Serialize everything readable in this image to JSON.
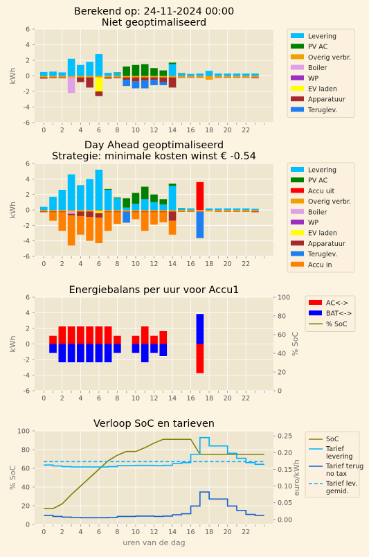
{
  "colors": {
    "background": "#fdf3e1",
    "plot_bg": "#efe6d0",
    "grid": "#ffffff",
    "levering": "#00bfff",
    "pv_ac": "#008000",
    "accu_uit": "#ff0000",
    "overig": "#f0a000",
    "boiler": "#e0a0e8",
    "wp": "#9b30c0",
    "ev": "#ffff00",
    "apparatuur": "#a52a2a",
    "teruglev": "#1e7ff0",
    "accu_in": "#ff8000",
    "ac": "#ff0000",
    "bat": "#0000ff",
    "soc": "#808000",
    "tarief": "#00b0ff",
    "tarief_terug": "#1060d0",
    "tick_text": "#555555",
    "label_text": "#777777"
  },
  "xlabel": "uren van de dag",
  "chart_data": [
    {
      "type": "bar",
      "title": [
        "Berekend op: 24-11-2024 00:00",
        "Niet geoptimaliseerd"
      ],
      "ylabel": "kWh",
      "ylim": [
        -6,
        6
      ],
      "yticks": [
        -6,
        -4,
        -2,
        0,
        2,
        4,
        6
      ],
      "xticks": [
        0,
        2,
        4,
        6,
        8,
        10,
        12,
        14,
        16,
        18,
        20,
        22
      ],
      "x": [
        0,
        1,
        2,
        3,
        4,
        5,
        6,
        7,
        8,
        9,
        10,
        11,
        12,
        13,
        14,
        15,
        16,
        17,
        18,
        19,
        20,
        21,
        22,
        23
      ],
      "legend": [
        "Levering",
        "PV AC",
        "Overig verbr.",
        "Boiler",
        "WP",
        "EV laden",
        "Apparatuur",
        "Teruglev."
      ],
      "positive_series": [
        {
          "name": "Levering",
          "values": [
            0.5,
            0.55,
            0.45,
            2.2,
            1.4,
            1.8,
            2.8,
            0.4,
            0.4,
            0,
            0,
            0,
            0,
            0,
            1.5,
            0.3,
            0.25,
            0.3,
            0.65,
            0.3,
            0.3,
            0.3,
            0.3,
            0.3
          ]
        },
        {
          "name": "PV AC",
          "values": [
            0,
            0,
            0,
            0,
            0,
            0,
            0,
            0,
            0.05,
            1.2,
            1.4,
            1.5,
            1.0,
            0.7,
            0.2,
            0.05,
            0,
            0,
            0,
            0,
            0,
            0,
            0,
            0
          ]
        }
      ],
      "negative_series": [
        {
          "name": "Overig verbr.",
          "values": [
            -0.2,
            -0.2,
            -0.2,
            -0.2,
            -0.2,
            -0.2,
            -0.2,
            -0.2,
            -0.2,
            -0.2,
            -0.2,
            -0.2,
            -0.2,
            -0.2,
            -0.2,
            -0.2,
            -0.2,
            -0.2,
            -0.5,
            -0.2,
            -0.2,
            -0.2,
            -0.2,
            -0.2
          ]
        },
        {
          "name": "Boiler",
          "values": [
            0,
            0,
            0,
            -2.0,
            0,
            0,
            0,
            0,
            0,
            0,
            0,
            0,
            0,
            0,
            0,
            0,
            0,
            0,
            0,
            0,
            0,
            0,
            0,
            0
          ]
        },
        {
          "name": "EV laden",
          "values": [
            0,
            0,
            0,
            0,
            0,
            0,
            -1.8,
            0,
            0,
            0,
            0,
            0,
            0,
            0,
            0,
            0,
            0,
            0,
            0,
            0,
            0,
            0,
            0,
            0
          ]
        },
        {
          "name": "Apparatuur",
          "values": [
            -0.15,
            -0.1,
            -0.1,
            0,
            -0.6,
            -1.3,
            -0.6,
            -0.15,
            -0.1,
            -0.3,
            -0.5,
            -0.4,
            -0.3,
            -0.6,
            -1.3,
            -0.05,
            -0.05,
            -0.05,
            0,
            -0.05,
            -0.05,
            -0.05,
            -0.05,
            -0.1
          ]
        },
        {
          "name": "Teruglev.",
          "values": [
            0,
            0,
            0,
            0,
            0,
            0,
            0,
            0,
            0,
            -0.8,
            -0.9,
            -1.0,
            -0.7,
            -0.4,
            0,
            0,
            0,
            0,
            0,
            0,
            0,
            0,
            0,
            0
          ]
        }
      ]
    },
    {
      "type": "bar",
      "title": [
        "Day Ahead geoptimaliseerd",
        "Strategie: minimale kosten winst € -0.54"
      ],
      "ylabel": "kWh",
      "ylim": [
        -6,
        6
      ],
      "yticks": [
        -6,
        -4,
        -2,
        0,
        2,
        4,
        6
      ],
      "xticks": [
        0,
        2,
        4,
        6,
        8,
        10,
        12,
        14,
        16,
        18,
        20,
        22
      ],
      "x": [
        0,
        1,
        2,
        3,
        4,
        5,
        6,
        7,
        8,
        9,
        10,
        11,
        12,
        13,
        14,
        15,
        16,
        17,
        18,
        19,
        20,
        21,
        22,
        23
      ],
      "legend": [
        "Levering",
        "PV AC",
        "Accu uit",
        "Overig verbr.",
        "Boiler",
        "WP",
        "EV laden",
        "Apparatuur",
        "Teruglev.",
        "Accu in"
      ],
      "positive_series": [
        {
          "name": "Levering",
          "values": [
            0.4,
            1.7,
            2.6,
            4.6,
            3.2,
            4.0,
            5.2,
            2.6,
            1.5,
            0.3,
            0.8,
            1.4,
            1.0,
            0.7,
            3.1,
            0.2,
            0.2,
            0,
            0.2,
            0.2,
            0.2,
            0.2,
            0.2,
            0.15
          ]
        },
        {
          "name": "PV AC",
          "values": [
            0,
            0,
            0,
            0,
            0,
            0,
            0,
            0.1,
            0.1,
            1.2,
            1.4,
            1.6,
            1.0,
            0.7,
            0.3,
            0.05,
            0,
            0,
            0,
            0,
            0,
            0,
            0,
            0
          ]
        },
        {
          "name": "Accu uit",
          "values": [
            0,
            0,
            0,
            0,
            0,
            0,
            0,
            0,
            0,
            0,
            0,
            0,
            0,
            0,
            0,
            0,
            0,
            3.6,
            0,
            0,
            0,
            0,
            0,
            0
          ]
        }
      ],
      "negative_series": [
        {
          "name": "Overig verbr.",
          "values": [
            -0.2,
            -0.2,
            -0.2,
            -0.2,
            -0.2,
            -0.2,
            -0.2,
            -0.2,
            -0.2,
            -0.2,
            -0.2,
            -0.2,
            -0.2,
            -0.2,
            -0.2,
            -0.2,
            -0.2,
            -0.2,
            -0.2,
            -0.2,
            -0.2,
            -0.2,
            -0.2,
            -0.2
          ]
        },
        {
          "name": "Boiler",
          "values": [
            0,
            0,
            0,
            -0.3,
            0,
            0,
            0,
            0,
            0,
            0,
            0,
            0,
            0,
            0,
            0,
            0,
            0,
            0,
            0,
            0,
            0,
            0,
            0,
            0
          ]
        },
        {
          "name": "EV laden",
          "values": [
            0,
            0,
            0,
            0,
            0,
            0,
            -0.2,
            0,
            0,
            0,
            0,
            0,
            0,
            0,
            0,
            0,
            0,
            0,
            0,
            0,
            0,
            0,
            0,
            0
          ]
        },
        {
          "name": "Apparatuur",
          "values": [
            -0.1,
            -0.1,
            -0.1,
            -0.2,
            -0.6,
            -0.7,
            -0.6,
            -0.1,
            -0.1,
            -0.05,
            -0.1,
            -0.1,
            -0.1,
            -0.1,
            -1.2,
            -0.05,
            -0.05,
            -0.05,
            0,
            -0.05,
            -0.05,
            -0.05,
            -0.05,
            -0.1
          ]
        },
        {
          "name": "Teruglev.",
          "values": [
            0,
            0,
            0,
            0,
            0,
            0,
            0,
            0,
            0,
            -1.4,
            0,
            0,
            0,
            0,
            0,
            0,
            0,
            -3.4,
            0,
            0,
            0,
            0,
            0,
            0
          ]
        },
        {
          "name": "Accu in",
          "values": [
            0,
            -1.1,
            -2.4,
            -3.9,
            -2.4,
            -3.1,
            -3.3,
            -2.4,
            -1.5,
            0,
            -0.9,
            -2.4,
            -1.6,
            -1.3,
            -1.8,
            0,
            0,
            0,
            0,
            0,
            0,
            0,
            0,
            0
          ]
        }
      ]
    },
    {
      "type": "bar",
      "title": [
        "Energiebalans per uur voor Accu1"
      ],
      "ylabel": "kWh",
      "ylabel2": "% SoC",
      "ylim": [
        -6,
        6
      ],
      "yticks": [
        -6,
        -4,
        -2,
        0,
        2,
        4,
        6
      ],
      "y2lim": [
        0,
        100
      ],
      "y2ticks": [
        0,
        20,
        40,
        60,
        80,
        100
      ],
      "xticks": [
        0,
        2,
        4,
        6,
        8,
        10,
        12,
        14,
        16,
        18,
        20,
        22
      ],
      "x": [
        0,
        1,
        2,
        3,
        4,
        5,
        6,
        7,
        8,
        9,
        10,
        11,
        12,
        13,
        14,
        15,
        16,
        17,
        18,
        19,
        20,
        21,
        22,
        23
      ],
      "legend": [
        "AC<->",
        "BAT<->",
        "% SoC"
      ],
      "ac_values": [
        0,
        1.1,
        2.3,
        2.3,
        2.3,
        2.3,
        2.3,
        2.3,
        1.1,
        0,
        1.1,
        2.3,
        1.1,
        1.7,
        0,
        0,
        0,
        -3.8,
        0,
        0,
        0,
        0,
        0,
        0
      ],
      "bat_values": [
        0,
        -1.2,
        -2.4,
        -2.4,
        -2.4,
        -2.4,
        -2.4,
        -2.4,
        -1.2,
        0,
        -1.2,
        -2.4,
        -1.2,
        -1.6,
        0,
        0,
        0,
        3.9,
        0,
        0,
        0,
        0,
        0,
        0
      ]
    },
    {
      "type": "line",
      "title": [
        "Verloop SoC en tarieven"
      ],
      "ylabel": "% SoC",
      "ylabel2": "euro/kWh",
      "ylim": [
        0,
        100
      ],
      "yticks": [
        0,
        20,
        40,
        60,
        80,
        100
      ],
      "y2lim": [
        -0.015,
        0.265
      ],
      "y2ticks": [
        "0.00",
        "0.05",
        "0.10",
        "0.15",
        "0.20",
        "0.25"
      ],
      "xticks": [
        0,
        2,
        4,
        6,
        8,
        10,
        12,
        14,
        16,
        18,
        20,
        22
      ],
      "legend": [
        "SoC",
        "Tarief levering",
        "Tarief terug no tax",
        "Tarief lev. gemid."
      ],
      "soc": {
        "x": [
          0,
          1,
          2,
          3,
          4,
          5,
          6,
          7,
          8,
          9,
          10,
          11,
          12,
          13,
          14,
          15,
          16,
          17,
          18,
          19,
          20,
          21,
          22,
          23,
          24
        ],
        "values": [
          17,
          17,
          22,
          32,
          41,
          50,
          59,
          68,
          74,
          78,
          78,
          82,
          87,
          91,
          91,
          91,
          91,
          75,
          75,
          75,
          75,
          75,
          75,
          75,
          75
        ]
      },
      "tarief_levering": [
        0.163,
        0.16,
        0.158,
        0.157,
        0.157,
        0.157,
        0.157,
        0.158,
        0.161,
        0.161,
        0.162,
        0.162,
        0.161,
        0.162,
        0.167,
        0.17,
        0.195,
        0.245,
        0.22,
        0.22,
        0.198,
        0.183,
        0.17,
        0.165
      ],
      "tarief_terug": [
        0.012,
        0.009,
        0.007,
        0.006,
        0.005,
        0.005,
        0.005,
        0.006,
        0.009,
        0.009,
        0.01,
        0.01,
        0.009,
        0.01,
        0.014,
        0.017,
        0.04,
        0.082,
        0.061,
        0.061,
        0.04,
        0.027,
        0.015,
        0.012
      ],
      "tarief_gemid": 0.173
    }
  ]
}
